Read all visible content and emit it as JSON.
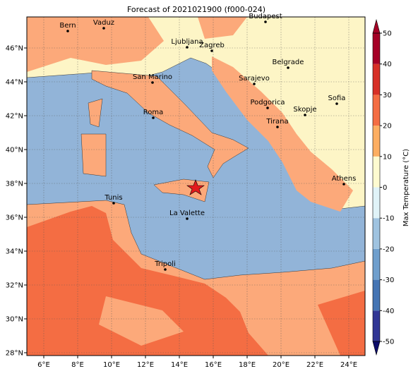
{
  "title": "Forecast of 2021021900 (f000-024)",
  "map": {
    "lon_ticks": [
      {
        "value": 6,
        "label": "6°E"
      },
      {
        "value": 8,
        "label": "8°E"
      },
      {
        "value": 10,
        "label": "10°E"
      },
      {
        "value": 12,
        "label": "12°E"
      },
      {
        "value": 14,
        "label": "14°E"
      },
      {
        "value": 16,
        "label": "16°E"
      },
      {
        "value": 18,
        "label": "18°E"
      },
      {
        "value": 20,
        "label": "20°E"
      },
      {
        "value": 22,
        "label": "22°E"
      },
      {
        "value": 24,
        "label": "24°E"
      }
    ],
    "lat_ticks": [
      {
        "value": 28,
        "label": "28°N"
      },
      {
        "value": 30,
        "label": "30°N"
      },
      {
        "value": 32,
        "label": "32°N"
      },
      {
        "value": 34,
        "label": "34°N"
      },
      {
        "value": 36,
        "label": "36°N"
      },
      {
        "value": 38,
        "label": "38°N"
      },
      {
        "value": 40,
        "label": "40°N"
      },
      {
        "value": 42,
        "label": "42°N"
      },
      {
        "value": 44,
        "label": "44°N"
      },
      {
        "value": 46,
        "label": "46°N"
      }
    ],
    "cities": [
      "Bern",
      "Vaduz",
      "Budapest",
      "Ljubljana",
      "Zagreb",
      "San Marino",
      "Sarajevo",
      "Belgrade",
      "Sofia",
      "Podgorica",
      "Skopje",
      "Roma",
      "Tirana",
      "Athens",
      "Tunis",
      "La Valette",
      "Tripoli"
    ]
  },
  "colorbar": {
    "label": "Max Temperature (°C)",
    "ticks": [
      -50,
      -40,
      -30,
      -20,
      -10,
      0,
      10,
      20,
      30,
      40,
      50
    ],
    "colors": [
      "#313695",
      "#4575b4",
      "#6f9fcd",
      "#9fc3e0",
      "#e0f3f8",
      "#fefbd0",
      "#fdae61",
      "#f46d43",
      "#d73027",
      "#a50026"
    ]
  }
}
